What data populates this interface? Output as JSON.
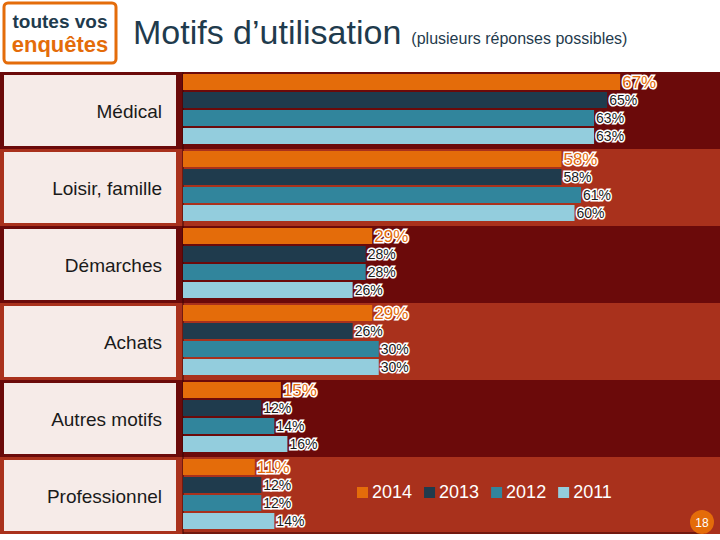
{
  "chart_data": {
    "type": "bar",
    "orientation": "horizontal",
    "title": "Motifs d’utilisation",
    "subtitle": "(plusieurs réponses possibles)",
    "logo": [
      "toutes vos",
      "enquêtes"
    ],
    "page_number": "18",
    "categories": [
      "Médical",
      "Loisir, famille",
      "Démarches",
      "Achats",
      "Autres motifs",
      "Professionnel"
    ],
    "series": [
      {
        "name": "2014",
        "color": "#e46c0a",
        "values": [
          67,
          58,
          29,
          29,
          15,
          11
        ],
        "value_labels": [
          "67%",
          "58%",
          "29%",
          "29%",
          "15%",
          "11%"
        ]
      },
      {
        "name": "2013",
        "color": "#1f3b4d",
        "values": [
          65,
          58,
          28,
          26,
          12,
          12
        ],
        "value_labels": [
          "65%",
          "58%",
          "28%",
          "26%",
          "12%",
          "12%"
        ]
      },
      {
        "name": "2012",
        "color": "#31859c",
        "values": [
          63,
          61,
          28,
          30,
          14,
          12
        ],
        "value_labels": [
          "63%",
          "61%",
          "28%",
          "30%",
          "14%",
          "12%"
        ]
      },
      {
        "name": "2011",
        "color": "#93cddd",
        "values": [
          63,
          60,
          26,
          30,
          16,
          14
        ],
        "value_labels": [
          "63%",
          "60%",
          "26%",
          "30%",
          "16%",
          "14%"
        ]
      }
    ],
    "xlim": [
      0,
      80
    ],
    "grid": false,
    "data_labels": true,
    "tick_labels": "y",
    "legend": "bottom-right"
  }
}
